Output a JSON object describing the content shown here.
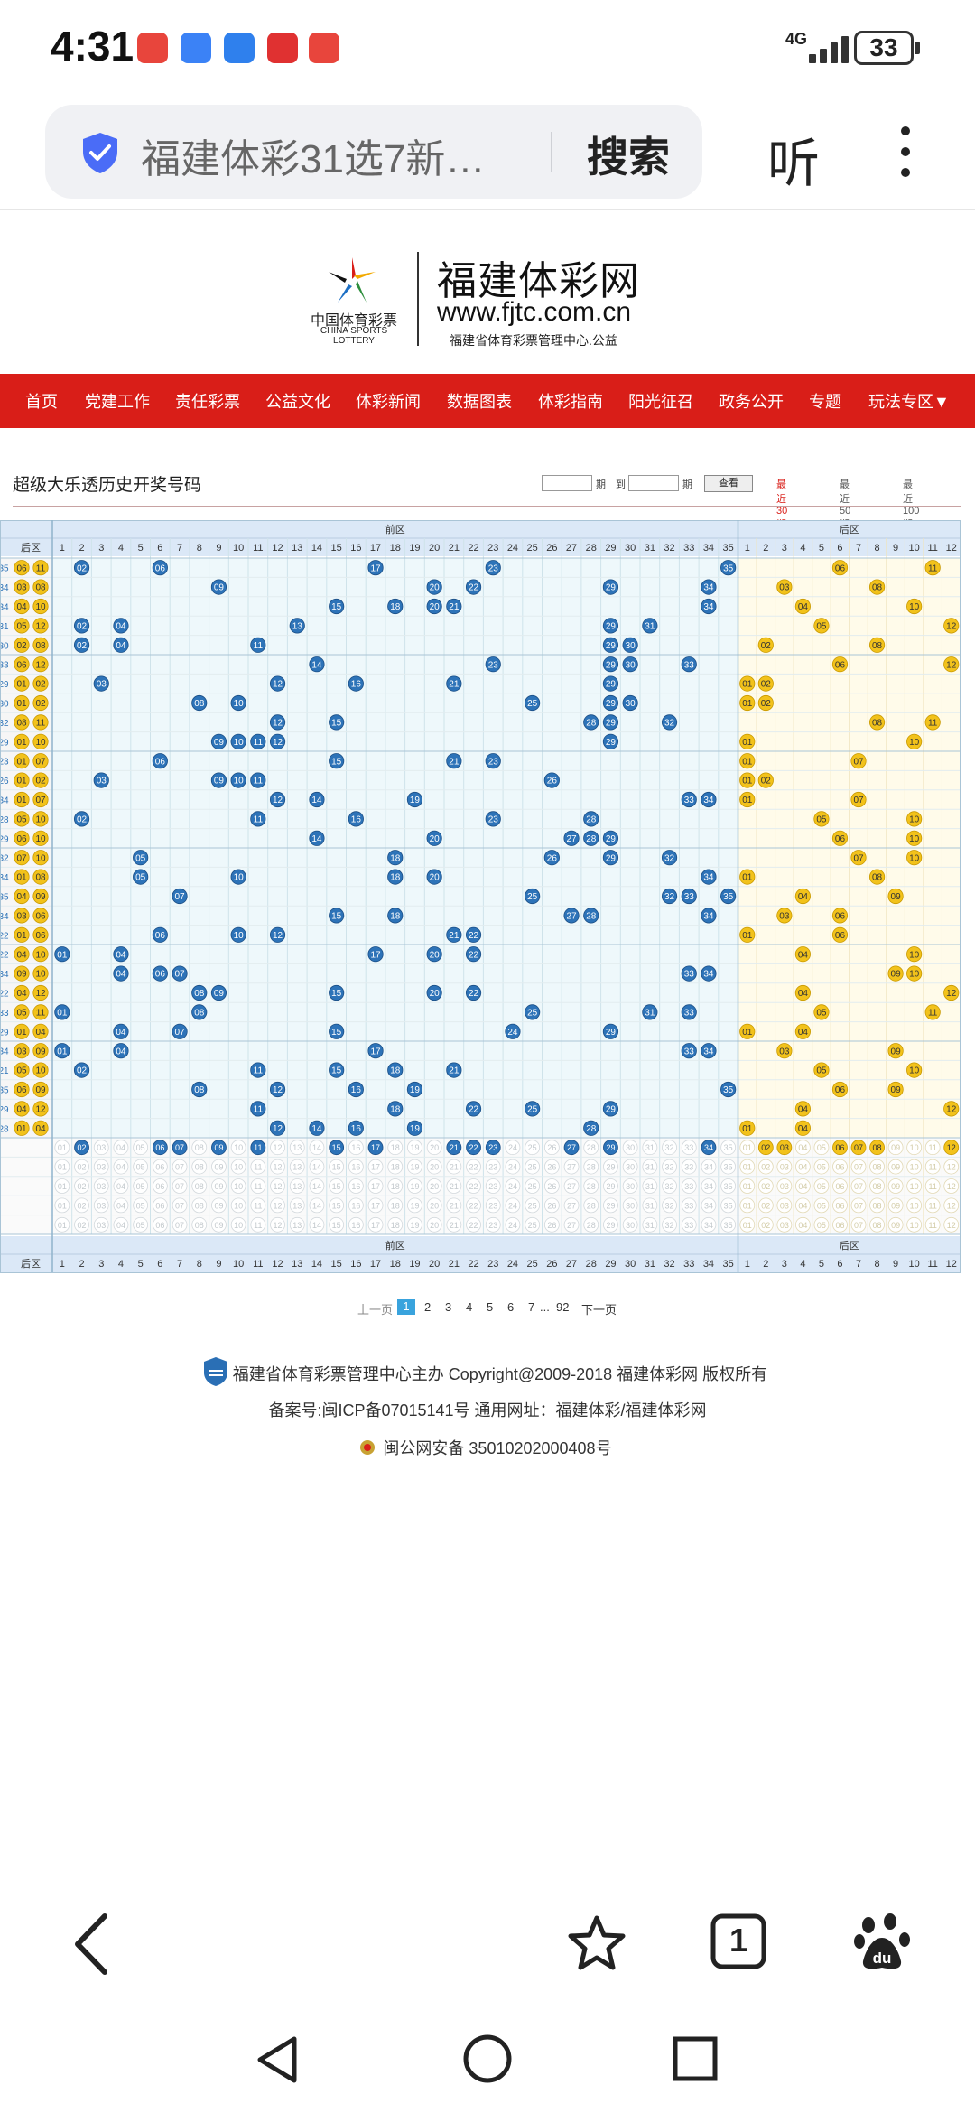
{
  "status": {
    "time": "4:31",
    "network": "4G",
    "battery": "33",
    "app_icon_colors": [
      "#e8453c",
      "#3b82f6",
      "#2f80ed",
      "#e03131",
      "#e8453c"
    ]
  },
  "browser": {
    "url_title": "福建体彩31选7新…",
    "search_label": "搜索",
    "listen_label": "听",
    "tab_count": "1"
  },
  "site": {
    "logo_cn": "中国体育彩票",
    "logo_en": "CHINA SPORTS LOTTERY",
    "name": "福建体彩网",
    "url": "www.fjtc.com.cn",
    "subtitle": "福建省体育彩票管理中心.公益"
  },
  "nav": {
    "items": [
      "首页",
      "党建工作",
      "责任彩票",
      "公益文化",
      "体彩新闻",
      "数据图表",
      "体彩指南",
      "阳光征召",
      "政务公开",
      "专题",
      "玩法专区▼"
    ],
    "color": "#d91e18"
  },
  "section": {
    "title": "超级大乐透历史开奖号码",
    "filter_label_a": "期",
    "filter_label_to": "到",
    "filter_label_b": "期",
    "query_label": "查看",
    "recent": [
      "最近30期",
      "最近50期",
      "最近100期"
    ]
  },
  "grid": {
    "front_label": "前区",
    "back_label": "后区",
    "left_header": "后区",
    "front_numbers": [
      "1",
      "2",
      "3",
      "4",
      "5",
      "6",
      "7",
      "8",
      "9",
      "10",
      "11",
      "12",
      "13",
      "14",
      "15",
      "16",
      "17",
      "18",
      "19",
      "20",
      "21",
      "22",
      "23",
      "24",
      "25",
      "26",
      "27",
      "28",
      "29",
      "30",
      "31",
      "32",
      "33",
      "34",
      "35"
    ],
    "back_numbers": [
      "1",
      "2",
      "3",
      "4",
      "5",
      "6",
      "7",
      "8",
      "9",
      "10",
      "11",
      "12"
    ],
    "front_color": "#2d73b8",
    "back_color": "#f2c21b",
    "rows": [
      {
        "id": "35",
        "left": [
          "06",
          "11"
        ],
        "front": [
          2,
          6,
          17,
          23,
          35
        ],
        "back": [
          6,
          11
        ]
      },
      {
        "id": "34",
        "left": [
          "03",
          "08"
        ],
        "front": [
          9,
          20,
          22,
          29,
          34
        ],
        "back": [
          3,
          8
        ]
      },
      {
        "id": "34",
        "left": [
          "04",
          "10"
        ],
        "front": [
          15,
          18,
          20,
          21,
          34
        ],
        "back": [
          4,
          10
        ]
      },
      {
        "id": "31",
        "left": [
          "05",
          "12"
        ],
        "front": [
          2,
          4,
          13,
          29,
          31
        ],
        "back": [
          5,
          12
        ]
      },
      {
        "id": "30",
        "left": [
          "02",
          "08"
        ],
        "front": [
          2,
          4,
          11,
          29,
          30
        ],
        "back": [
          2,
          8
        ]
      },
      {
        "id": "33",
        "left": [
          "06",
          "12"
        ],
        "front": [
          14,
          23,
          29,
          30,
          33
        ],
        "back": [
          6,
          12
        ]
      },
      {
        "id": "29",
        "left": [
          "01",
          "02"
        ],
        "front": [
          3,
          12,
          16,
          21,
          29
        ],
        "back": [
          1,
          2
        ]
      },
      {
        "id": "30",
        "left": [
          "01",
          "02"
        ],
        "front": [
          8,
          10,
          25,
          29,
          30
        ],
        "back": [
          1,
          2
        ]
      },
      {
        "id": "32",
        "left": [
          "08",
          "11"
        ],
        "front": [
          12,
          15,
          28,
          29,
          32
        ],
        "back": [
          8,
          11
        ]
      },
      {
        "id": "29",
        "left": [
          "01",
          "10"
        ],
        "front": [
          9,
          10,
          11,
          12,
          29
        ],
        "back": [
          1,
          10
        ]
      },
      {
        "id": "23",
        "left": [
          "01",
          "07"
        ],
        "front": [
          6,
          15,
          21,
          23
        ],
        "back": [
          1,
          7
        ]
      },
      {
        "id": "26",
        "left": [
          "01",
          "02"
        ],
        "front": [
          3,
          9,
          10,
          11,
          26
        ],
        "back": [
          1,
          2
        ]
      },
      {
        "id": "34",
        "left": [
          "01",
          "07"
        ],
        "front": [
          12,
          14,
          19,
          33,
          34
        ],
        "back": [
          1,
          7
        ]
      },
      {
        "id": "28",
        "left": [
          "05",
          "10"
        ],
        "front": [
          2,
          11,
          16,
          23,
          28
        ],
        "back": [
          5,
          10
        ]
      },
      {
        "id": "29",
        "left": [
          "06",
          "10"
        ],
        "front": [
          14,
          20,
          27,
          28,
          29
        ],
        "back": [
          6,
          10
        ]
      },
      {
        "id": "32",
        "left": [
          "07",
          "10"
        ],
        "front": [
          5,
          18,
          26,
          29,
          32
        ],
        "back": [
          7,
          10
        ]
      },
      {
        "id": "34",
        "left": [
          "01",
          "08"
        ],
        "front": [
          5,
          10,
          18,
          20,
          34
        ],
        "back": [
          1,
          8
        ]
      },
      {
        "id": "35",
        "left": [
          "04",
          "09"
        ],
        "front": [
          7,
          25,
          32,
          33,
          35
        ],
        "back": [
          4,
          9
        ]
      },
      {
        "id": "34",
        "left": [
          "03",
          "06"
        ],
        "front": [
          15,
          18,
          27,
          28,
          34
        ],
        "back": [
          3,
          6
        ]
      },
      {
        "id": "22",
        "left": [
          "01",
          "06"
        ],
        "front": [
          6,
          10,
          12,
          21,
          22
        ],
        "back": [
          1,
          6
        ]
      },
      {
        "id": "22",
        "left": [
          "04",
          "10"
        ],
        "front": [
          1,
          4,
          17,
          20,
          22
        ],
        "back": [
          4,
          10
        ]
      },
      {
        "id": "34",
        "left": [
          "09",
          "10"
        ],
        "front": [
          4,
          6,
          7,
          33,
          34
        ],
        "back": [
          9,
          10
        ]
      },
      {
        "id": "22",
        "left": [
          "04",
          "12"
        ],
        "front": [
          8,
          9,
          15,
          20,
          22
        ],
        "back": [
          4,
          12
        ]
      },
      {
        "id": "33",
        "left": [
          "05",
          "11"
        ],
        "front": [
          1,
          8,
          25,
          31,
          33
        ],
        "back": [
          5,
          11
        ]
      },
      {
        "id": "29",
        "left": [
          "01",
          "04"
        ],
        "front": [
          4,
          7,
          15,
          24,
          29
        ],
        "back": [
          1,
          4
        ]
      },
      {
        "id": "34",
        "left": [
          "03",
          "09"
        ],
        "front": [
          1,
          4,
          17,
          33,
          34
        ],
        "back": [
          3,
          9
        ]
      },
      {
        "id": "21",
        "left": [
          "05",
          "10"
        ],
        "front": [
          2,
          11,
          15,
          18,
          21
        ],
        "back": [
          5,
          10
        ]
      },
      {
        "id": "35",
        "left": [
          "06",
          "09"
        ],
        "front": [
          8,
          12,
          16,
          19,
          35
        ],
        "back": [
          6,
          9
        ]
      },
      {
        "id": "29",
        "left": [
          "04",
          "12"
        ],
        "front": [
          11,
          18,
          22,
          25,
          29
        ],
        "back": [
          4,
          12
        ]
      },
      {
        "id": "28",
        "left": [
          "01",
          "04"
        ],
        "front": [
          12,
          14,
          16,
          19,
          28
        ],
        "back": [
          1,
          4
        ]
      }
    ],
    "summary_front": [
      2,
      6,
      7,
      9,
      11,
      15,
      17,
      21,
      22,
      23,
      27,
      29,
      34
    ],
    "summary_back": [
      2,
      3,
      6,
      7,
      8,
      12
    ]
  },
  "pager": {
    "prev": "上一页",
    "pages": [
      "1",
      "2",
      "3",
      "4",
      "5",
      "6",
      "7",
      "...",
      "92"
    ],
    "next": "下一页"
  },
  "footer": {
    "line1": "福建省体育彩票管理中心主办 Copyright@2009-2018 福建体彩网 版权所有",
    "line2": "备案号:闽ICP备07015141号    通用网址：福建体彩/福建体彩网",
    "line3": "闽公网安备 35010202000408号"
  }
}
